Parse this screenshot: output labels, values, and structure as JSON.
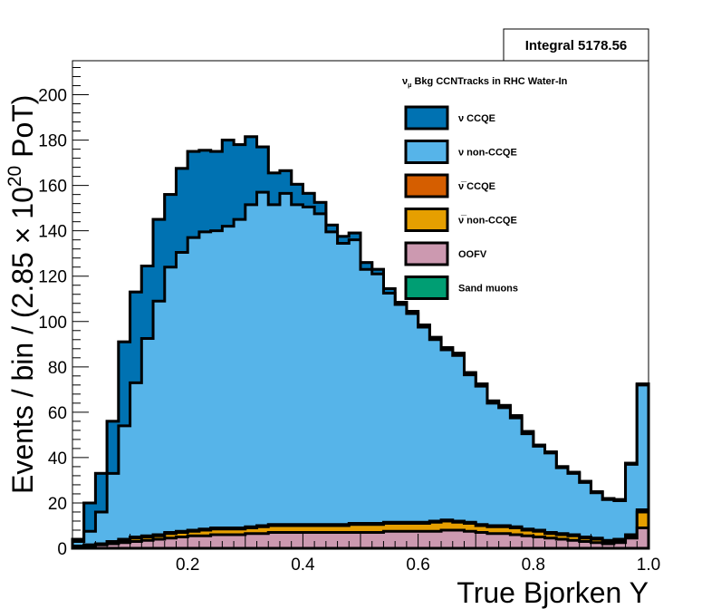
{
  "integral_box": {
    "label": "Integral 5178.56"
  },
  "legend": {
    "header_sym": "ν",
    "header_sub": "μ",
    "header_rest": " Bkg CCNTracks in RHC Water-In",
    "items": [
      {
        "sym": "ν",
        "label": " CCQE",
        "color": "#0072b2"
      },
      {
        "sym": "ν",
        "label": " non-CCQE",
        "color": "#56b4e9"
      },
      {
        "sym": "ν̅",
        "label": " CCQE",
        "color": "#d55e00"
      },
      {
        "sym": "ν̅",
        "label": " non-CCQE",
        "color": "#e69f00"
      },
      {
        "sym": "",
        "label": "OOFV",
        "color": "#cc99b0"
      },
      {
        "sym": "",
        "label": "Sand muons",
        "color": "#009e73"
      }
    ]
  },
  "axes": {
    "xlabel": "True Bjorken Y",
    "ylabel_main": "Events / bin / (2.85 × 10",
    "ylabel_sup": "20",
    "ylabel_end": " PoT)"
  },
  "chart_data": {
    "type": "bar",
    "subtype": "stacked-histogram",
    "xlim": [
      0,
      1
    ],
    "ylim": [
      0,
      215
    ],
    "xticks": [
      "0.2",
      "0.4",
      "0.6",
      "0.8",
      "1.0"
    ],
    "yticks": [
      "0",
      "20",
      "40",
      "60",
      "80",
      "100",
      "120",
      "140",
      "160",
      "180",
      "200"
    ],
    "bin_edges": [
      0.0,
      0.02,
      0.04,
      0.06,
      0.08,
      0.1,
      0.12,
      0.14,
      0.16,
      0.18,
      0.2,
      0.22,
      0.24,
      0.26,
      0.28,
      0.3,
      0.32,
      0.34,
      0.36,
      0.38,
      0.4,
      0.42,
      0.44,
      0.46,
      0.48,
      0.5,
      0.52,
      0.54,
      0.56,
      0.58,
      0.6,
      0.62,
      0.64,
      0.66,
      0.68,
      0.7,
      0.72,
      0.74,
      0.76,
      0.78,
      0.8,
      0.82,
      0.84,
      0.86,
      0.88,
      0.9,
      0.92,
      0.94,
      0.96,
      0.98,
      1.0
    ],
    "series": [
      {
        "name": "OOFV",
        "color": "#cc99b0",
        "values": [
          0.5,
          1,
          1.5,
          2,
          2.5,
          3,
          3.5,
          4,
          4.5,
          5,
          5.5,
          5.5,
          6,
          6,
          6,
          6.5,
          6.5,
          7,
          7,
          7,
          7,
          7,
          7,
          7,
          7,
          7,
          7,
          7.5,
          7.5,
          7.5,
          7.5,
          7.5,
          8,
          8,
          7.5,
          7,
          6.5,
          6.5,
          6,
          5.5,
          5,
          4.5,
          4,
          3.5,
          3,
          2.5,
          2,
          2.5,
          4.5,
          9
        ]
      },
      {
        "name": "ν̅ non-CCQE",
        "color": "#e69f00",
        "values": [
          0.5,
          0.5,
          0.5,
          1,
          1,
          1.5,
          1.5,
          1.5,
          2,
          2,
          2,
          2.5,
          2.5,
          2.5,
          2.5,
          2.5,
          3,
          3,
          3,
          3,
          3,
          3,
          3,
          3,
          3.5,
          3.5,
          3.5,
          3.5,
          3.5,
          3.5,
          3.5,
          4,
          4,
          3.5,
          3.5,
          3,
          3,
          3,
          3,
          2.5,
          2.5,
          2,
          2,
          2,
          1.5,
          1.5,
          1,
          1,
          1,
          7
        ]
      },
      {
        "name": "ν̅ CCQE",
        "color": "#d55e00",
        "values": [
          0,
          0,
          0,
          0,
          0.5,
          0.5,
          0.5,
          0.5,
          0.5,
          0.5,
          0.5,
          0.5,
          0.5,
          0.5,
          0.5,
          0.5,
          0.5,
          0.5,
          0.5,
          0.5,
          0.5,
          0.5,
          0.5,
          0.5,
          0.5,
          0.5,
          0.5,
          0.5,
          0.5,
          0.5,
          0.5,
          0.5,
          0.5,
          0.5,
          0.5,
          0.5,
          0.5,
          0.5,
          0.5,
          0.5,
          0.5,
          0.5,
          0.5,
          0.5,
          0.5,
          0.5,
          0.5,
          0.5,
          0.5,
          1
        ]
      },
      {
        "name": "ν non-CCQE",
        "color": "#56b4e9",
        "values": [
          2,
          6,
          14,
          30,
          50,
          68,
          87,
          103,
          117,
          123,
          129,
          131,
          131,
          133,
          136,
          142,
          147,
          141,
          146,
          141,
          140,
          137,
          129,
          124,
          125,
          112,
          110,
          101,
          96,
          92,
          86,
          80,
          75,
          73,
          65,
          61,
          54,
          52,
          48,
          42,
          37,
          35,
          29,
          27,
          24,
          20,
          18,
          17,
          31,
          55
        ]
      },
      {
        "name": "ν CCQE",
        "color": "#0072b2",
        "values": [
          1,
          12.5,
          17,
          23,
          37,
          40,
          32,
          36,
          32,
          37,
          38,
          36,
          35,
          38,
          33,
          30,
          20,
          14,
          10,
          9,
          6,
          5,
          3,
          3,
          3,
          3,
          2,
          2,
          1,
          1,
          1,
          1,
          1,
          1,
          1,
          1,
          1,
          1,
          1,
          1,
          0.5,
          0.5,
          0.5,
          0.5,
          0.5,
          0.5,
          0.5,
          0.5,
          0.5,
          0.5
        ]
      },
      {
        "name": "Sand muons",
        "color": "#009e73",
        "values": [
          0,
          0,
          0,
          0,
          0,
          0,
          0,
          0,
          0,
          0,
          0,
          0,
          0,
          0,
          0,
          0,
          0,
          0,
          0,
          0,
          0,
          0,
          0,
          0,
          0,
          0,
          0,
          0,
          0,
          0,
          0,
          0,
          0,
          0,
          0,
          0,
          0,
          0,
          0,
          0,
          0,
          0,
          0,
          0,
          0,
          0,
          0,
          0,
          0,
          0
        ]
      }
    ]
  }
}
